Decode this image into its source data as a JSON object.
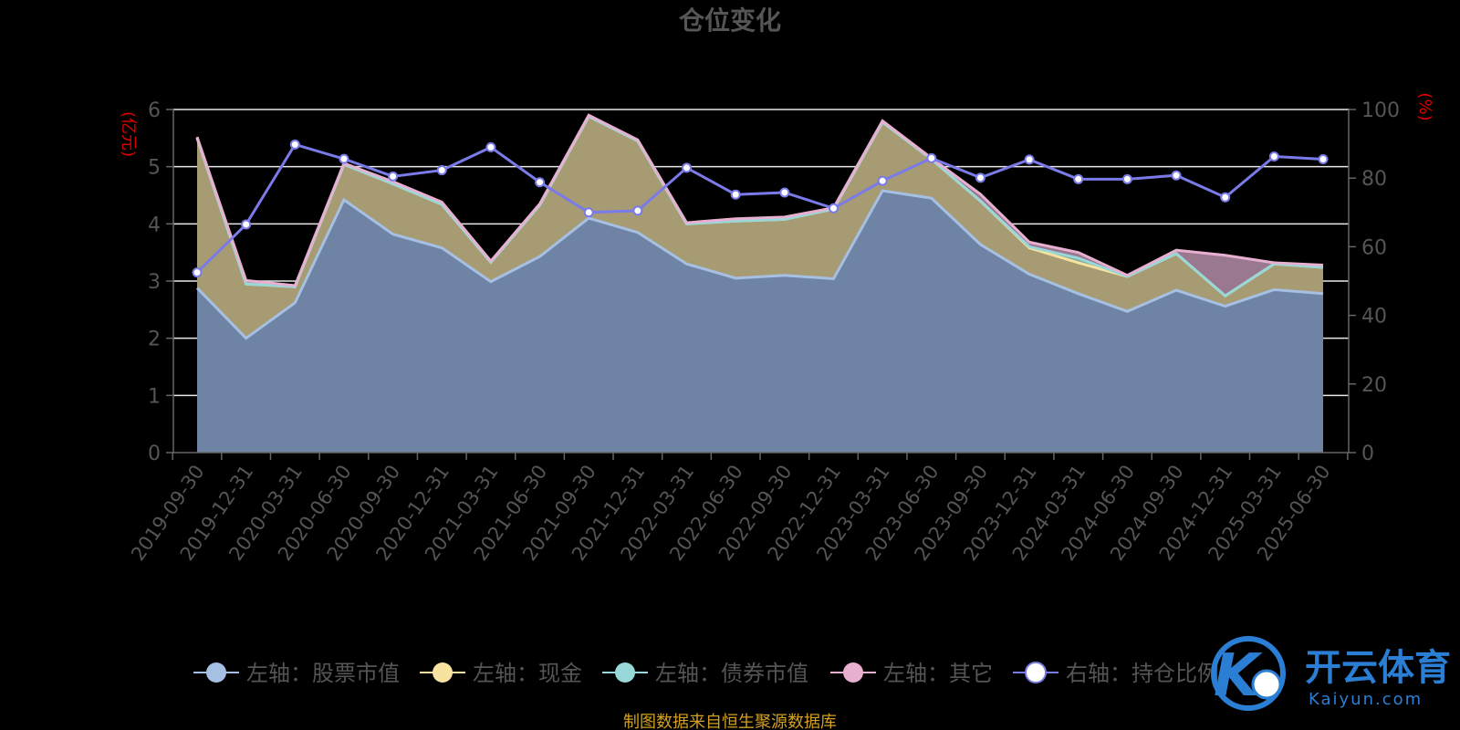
{
  "chart_data": {
    "type": "area",
    "title": "仓位变化",
    "left_unit": "(亿元)",
    "right_unit": "(%)",
    "source": "制图数据来自恒生聚源数据库",
    "watermark": {
      "main": "开云体育",
      "sub": "Kaiyun.com"
    },
    "left_ylim": [
      0,
      6
    ],
    "left_ticks": [
      0,
      1,
      2,
      3,
      4,
      5,
      6
    ],
    "right_ylim": [
      0,
      100
    ],
    "right_ticks": [
      0,
      20,
      40,
      60,
      80,
      100
    ],
    "grid": true,
    "legend_position": "bottom",
    "categories": [
      "2019-09-30",
      "2019-12-31",
      "2020-03-31",
      "2020-06-30",
      "2020-09-30",
      "2020-12-31",
      "2021-03-31",
      "2021-06-30",
      "2021-09-30",
      "2021-12-31",
      "2022-03-31",
      "2022-06-30",
      "2022-09-30",
      "2022-12-31",
      "2023-03-31",
      "2023-06-30",
      "2023-09-30",
      "2023-12-31",
      "2024-03-31",
      "2024-06-30",
      "2024-09-30",
      "2024-12-31",
      "2025-03-31",
      "2025-06-30"
    ],
    "series": [
      {
        "name": "左轴：股票市值",
        "axis": "left",
        "color": "#a6c0e4",
        "fill": "#6f83a4",
        "values": [
          2.88,
          2.0,
          2.62,
          4.42,
          3.82,
          3.58,
          2.99,
          3.43,
          4.1,
          3.85,
          3.3,
          3.05,
          3.1,
          3.04,
          4.58,
          4.45,
          3.64,
          3.12,
          2.78,
          2.47,
          2.84,
          2.56,
          2.85,
          2.78
        ]
      },
      {
        "name": "左轴：现金",
        "axis": "left",
        "color": "#f7e2a0",
        "fill": "#a79b73",
        "values": [
          2.62,
          0.95,
          0.28,
          0.62,
          0.88,
          0.76,
          0.34,
          0.9,
          1.78,
          1.6,
          0.7,
          1.0,
          0.98,
          1.22,
          1.2,
          0.68,
          0.76,
          0.46,
          0.54,
          0.61,
          0.64,
          0.18,
          0.45,
          0.46
        ]
      },
      {
        "name": "左轴：债券市值",
        "axis": "left",
        "color": "#98d8d8",
        "fill": "#7fa8a0",
        "values": [
          0.0,
          0.0,
          0.0,
          0.0,
          0.0,
          0.0,
          0.0,
          0.0,
          0.0,
          0.0,
          0.0,
          0.0,
          0.0,
          0.0,
          0.0,
          0.0,
          0.0,
          0.02,
          0.08,
          0.0,
          0.0,
          0.0,
          0.0,
          0.0
        ]
      },
      {
        "name": "左轴：其它",
        "axis": "left",
        "color": "#e8b0d0",
        "fill": "#9a7890",
        "values": [
          0.02,
          0.06,
          0.02,
          0.02,
          0.04,
          0.04,
          0.02,
          0.02,
          0.02,
          0.02,
          0.02,
          0.04,
          0.04,
          0.02,
          0.02,
          0.02,
          0.12,
          0.08,
          0.1,
          0.02,
          0.06,
          0.71,
          0.02,
          0.04
        ]
      },
      {
        "name": "右轴：持仓比例",
        "axis": "right",
        "color": "#7a7ae8",
        "values": [
          52.5,
          66.5,
          89.8,
          85.6,
          80.5,
          82.3,
          89.0,
          78.8,
          70.0,
          70.5,
          83.0,
          75.2,
          75.8,
          71.2,
          79.2,
          85.8,
          80.1,
          85.4,
          79.7,
          79.7,
          80.8,
          74.4,
          86.3,
          85.5
        ]
      }
    ]
  }
}
